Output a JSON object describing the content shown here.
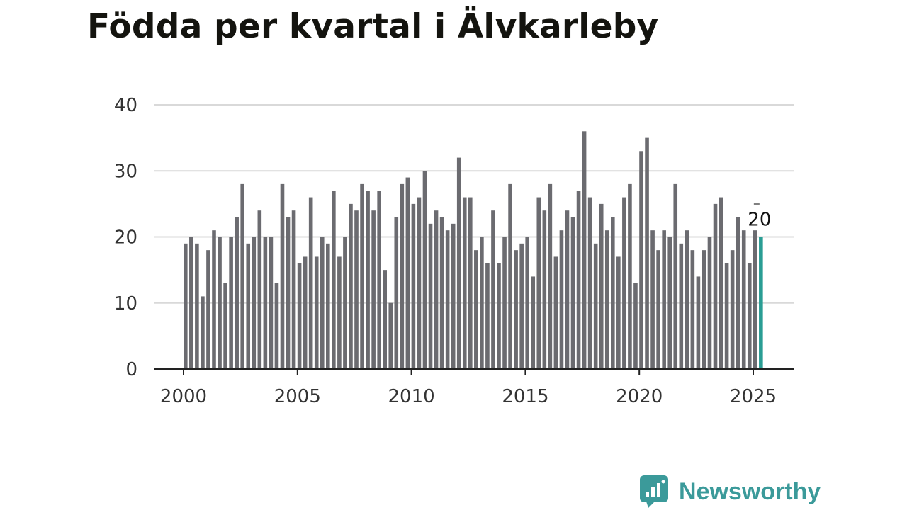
{
  "chart_data": {
    "type": "bar",
    "title": "Födda per kvartal i Älvkarleby",
    "xlabel": "",
    "ylabel": "",
    "ylim": [
      0,
      40
    ],
    "yticks": [
      0,
      10,
      20,
      30,
      40
    ],
    "xticks": [
      "2000",
      "2005",
      "2010",
      "2015",
      "2020",
      "2025"
    ],
    "x_start": "2000 Q1",
    "bar_color": "#6b6b70",
    "highlight_color": "#2a9d94",
    "grid": true,
    "values": [
      19,
      20,
      19,
      11,
      18,
      21,
      20,
      13,
      20,
      23,
      28,
      19,
      20,
      24,
      20,
      20,
      13,
      28,
      23,
      24,
      16,
      17,
      26,
      17,
      20,
      19,
      27,
      17,
      20,
      25,
      24,
      28,
      27,
      24,
      27,
      15,
      10,
      23,
      28,
      29,
      25,
      26,
      30,
      22,
      24,
      23,
      21,
      22,
      32,
      26,
      26,
      18,
      20,
      16,
      24,
      16,
      20,
      28,
      18,
      19,
      20,
      14,
      26,
      24,
      28,
      17,
      21,
      24,
      23,
      27,
      36,
      26,
      19,
      25,
      21,
      23,
      17,
      26,
      28,
      13,
      33,
      35,
      21,
      18,
      21,
      20,
      28,
      19,
      21,
      18,
      14,
      18,
      20,
      25,
      26,
      16,
      18,
      23,
      21,
      16,
      21,
      20
    ],
    "annotation": {
      "index": 101,
      "text": "20"
    }
  },
  "brand": {
    "name": "Newsworthy"
  }
}
